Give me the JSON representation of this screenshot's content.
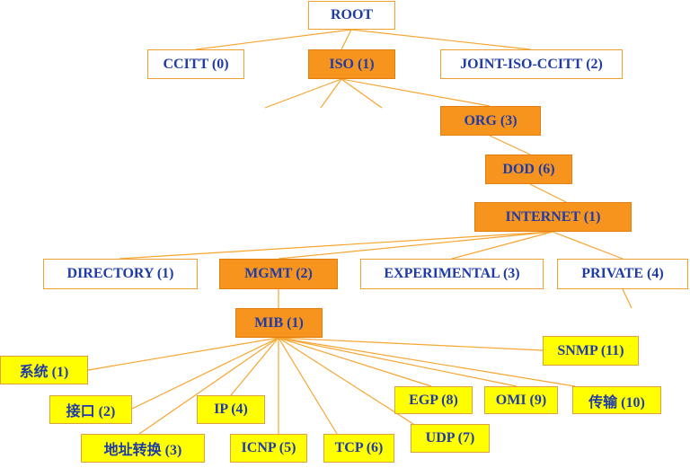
{
  "colors": {
    "line": "#f7a530",
    "text": "#1f3ba8",
    "highlight": "#f7941d",
    "leaf": "#ffff00"
  },
  "nodes": {
    "root": "ROOT",
    "ccitt": "CCITT  (0)",
    "iso": "ISO (1)",
    "joint_iso_ccitt": "JOINT-ISO-CCITT (2)",
    "org": "ORG (3)",
    "dod": "DOD (6)",
    "internet": "INTERNET  (1)",
    "directory": "DIRECTORY  (1)",
    "mgmt": "MGMT  (2)",
    "experimental": "EXPERIMENTAL  (3)",
    "private": "PRIVATE  (4)",
    "mib": "MIB (1)",
    "system": "系统 (1)",
    "interfaces": "接口 (2)",
    "at": "地址转换 (3)",
    "ip": "IP (4)",
    "icmp": "ICNP (5)",
    "tcp": "TCP (6)",
    "udp": "UDP (7)",
    "egp": "EGP (8)",
    "omi": "OMI (9)",
    "transmission": "传输 (10)",
    "snmp": "SNMP (11)"
  }
}
